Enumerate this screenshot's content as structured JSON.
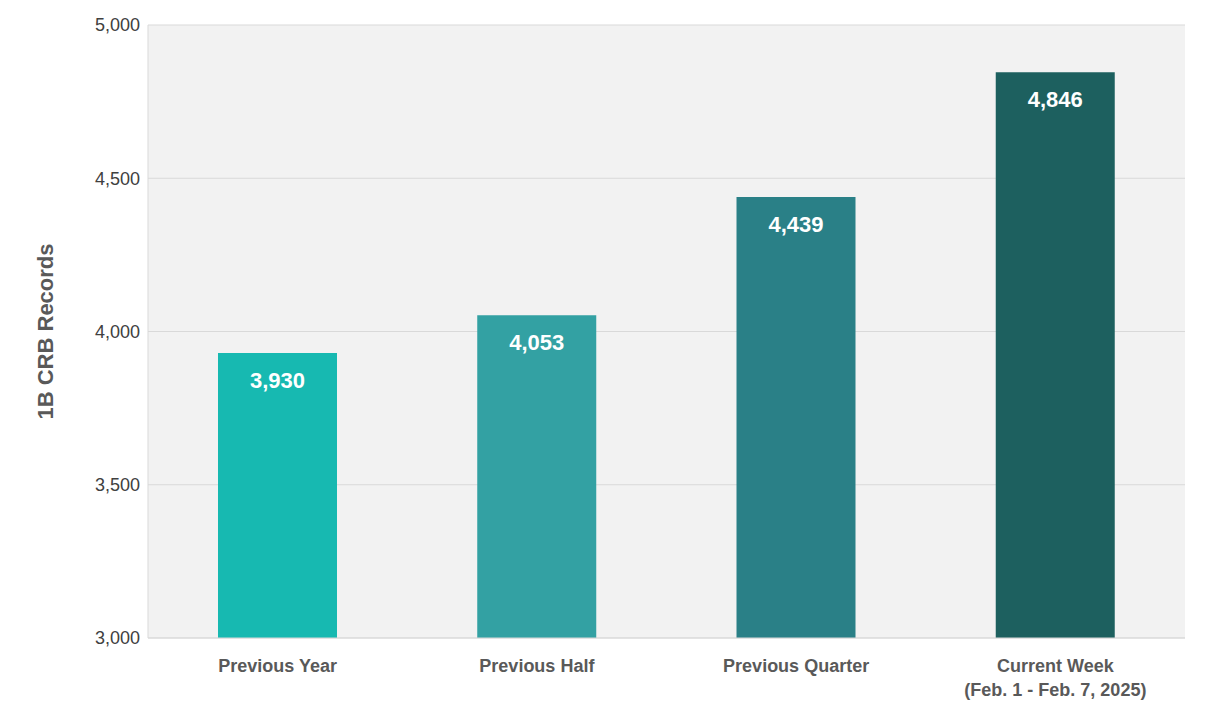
{
  "chart_data": {
    "type": "bar",
    "y_label": "1B CRB Records",
    "categories": [
      "Previous Year",
      "Previous Half",
      "Previous Quarter",
      "Current Week\n(Feb. 1 - Feb. 7, 2025)"
    ],
    "values": [
      3930,
      4053,
      4439,
      4846
    ],
    "value_labels": [
      "3,930",
      "4,053",
      "4,439",
      "4,846"
    ],
    "colors": [
      "#17B9B1",
      "#33A1A3",
      "#2A8087",
      "#1D605F"
    ],
    "ylim": [
      3000,
      5000
    ],
    "yticks": [
      {
        "value": 3000,
        "label": "3,000"
      },
      {
        "value": 3500,
        "label": "3,500"
      },
      {
        "value": 4000,
        "label": "4,000"
      },
      {
        "value": 4500,
        "label": "4,500"
      },
      {
        "value": 5000,
        "label": "5,000"
      }
    ],
    "grid": true,
    "data_labels": true
  }
}
